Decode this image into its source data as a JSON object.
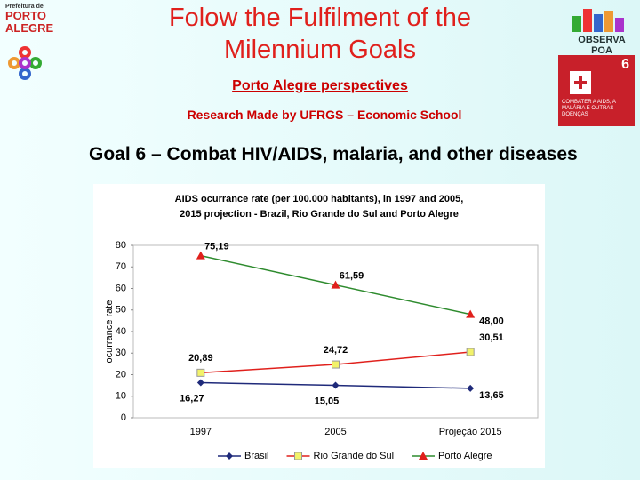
{
  "slide": {
    "title": "Folow the Fulfilment of the Milennium Goals",
    "subtitle": "Porto Alegre perspectives",
    "credit": "Research Made by UFRGS – Economic School",
    "goal": "Goal 6 – Combat HIV/AIDS, malaria, and other diseases",
    "logo_left": [
      "Prefeitura de",
      "PORTO",
      "ALEGRE"
    ],
    "logo_right": "OBSERVA POA",
    "badge_number": "6",
    "badge_text": "COMBATER A AIDS, A MALÁRIA E OUTRAS DOENÇAS"
  },
  "chart_data": {
    "type": "line",
    "title": [
      "AIDS ocurrance rate (per 100.000 habitants), in 1997 and 2005,",
      "2015 projection - Brazil, Rio Grande do Sul and Porto Alegre"
    ],
    "y_label": "ocurrance rate",
    "categories": [
      "1997",
      "2005",
      "Projeção 2015"
    ],
    "ylim": [
      0,
      80
    ],
    "yticks": [
      0,
      10,
      20,
      30,
      40,
      50,
      60,
      70,
      80
    ],
    "grid": false,
    "legend": "bottom",
    "series": [
      {
        "name": "Brasil",
        "color": "#1f2a7a",
        "marker": "diamond",
        "marker_color": "#1f2a7a",
        "values": [
          16.27,
          15.05,
          13.65
        ],
        "value_labels": [
          "16,27",
          "15,05",
          "13,65"
        ]
      },
      {
        "name": "Rio Grande do Sul",
        "color": "#e0201c",
        "marker": "square",
        "marker_color": "#f2f26a",
        "values": [
          20.89,
          24.72,
          30.51
        ],
        "value_labels": [
          "20,89",
          "24,72",
          "30,51"
        ]
      },
      {
        "name": "Porto Alegre",
        "color": "#2e8b2e",
        "marker": "triangle",
        "marker_color": "#e0201c",
        "values": [
          75.19,
          61.59,
          48.0
        ],
        "value_labels": [
          "75,19",
          "61,59",
          "48,00"
        ]
      }
    ]
  }
}
